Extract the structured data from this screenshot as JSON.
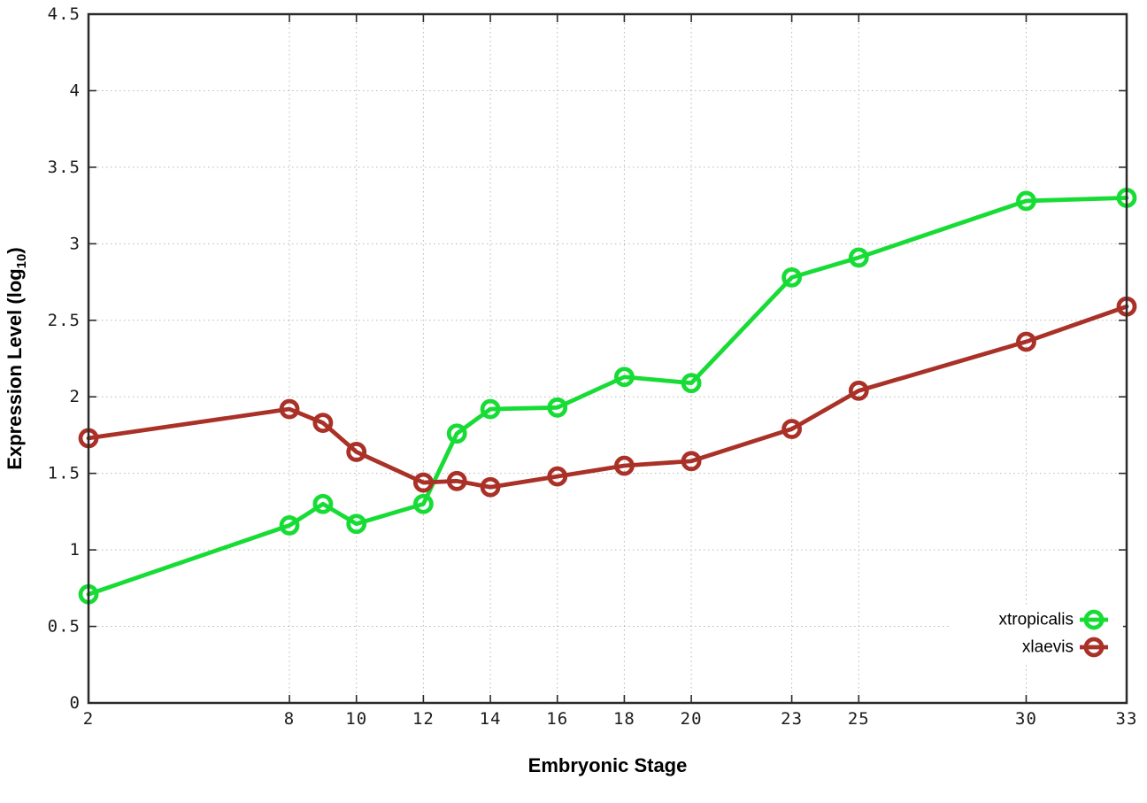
{
  "chart_data": {
    "type": "line",
    "title": "",
    "xlabel": "Embryonic Stage",
    "ylabel": "Expression Level (log10)",
    "ylabel_parts": {
      "pre": "Expression Level (log",
      "sub": "10",
      "post": ")"
    },
    "x_tick_labels": [
      "2",
      "8",
      "10",
      "12",
      "14",
      "16",
      "18",
      "20",
      "23",
      "25",
      "30",
      "33"
    ],
    "y_tick_labels": [
      "0",
      "0.5",
      "1",
      "1.5",
      "2",
      "2.5",
      "3",
      "3.5",
      "4",
      "4.5"
    ],
    "xlim": [
      2,
      33
    ],
    "ylim": [
      0,
      4.5
    ],
    "grid": true,
    "legend_position": "bottom-right",
    "x": [
      2,
      8,
      9,
      10,
      12,
      13,
      14,
      16,
      18,
      20,
      23,
      25,
      30,
      33
    ],
    "series": [
      {
        "name": "xtropicalis",
        "color": "#17dc35",
        "values": [
          0.71,
          1.16,
          1.3,
          1.17,
          1.3,
          1.76,
          1.92,
          1.93,
          2.13,
          2.09,
          2.78,
          2.91,
          3.28,
          3.3
        ]
      },
      {
        "name": "xlaevis",
        "color": "#a93127",
        "values": [
          1.73,
          1.92,
          1.83,
          1.64,
          1.44,
          1.45,
          1.41,
          1.48,
          1.55,
          1.58,
          1.79,
          2.04,
          2.36,
          2.59
        ]
      }
    ],
    "style": {
      "grid_color": "#b8b8b8",
      "axis_color": "#2a2a2a",
      "background": "#ffffff",
      "line_width": 4.8,
      "marker": "open-circle",
      "marker_radius": 9,
      "marker_stroke": 4.8
    }
  }
}
